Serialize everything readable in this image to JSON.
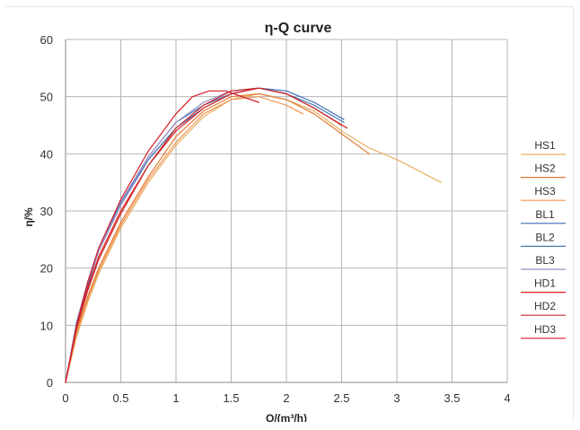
{
  "chart_data": {
    "type": "line",
    "title": "η-Q  curve",
    "xlabel": "Q/(m³/h)",
    "ylabel": "η/%",
    "xlim": [
      0,
      4
    ],
    "ylim": [
      0,
      60
    ],
    "xticks": [
      "0",
      "0.5",
      "1",
      "1.5",
      "2",
      "2.5",
      "3",
      "3.5",
      "4"
    ],
    "yticks": [
      "0",
      "10",
      "20",
      "30",
      "40",
      "50",
      "60"
    ],
    "grid": true,
    "legend_position": "right",
    "series": [
      {
        "name": "HS1",
        "color": "#e8b060",
        "x": [
          0,
          0.1,
          0.2,
          0.3,
          0.5,
          0.75,
          1.0,
          1.25,
          1.5,
          1.75,
          2.0,
          2.25,
          2.5,
          2.75,
          3.0,
          3.4
        ],
        "y": [
          0,
          8,
          14,
          19,
          27,
          35,
          41.5,
          46.5,
          49.5,
          50.5,
          49.5,
          47.5,
          44,
          41,
          39,
          35
        ]
      },
      {
        "name": "HS2",
        "color": "#e07a30",
        "x": [
          0,
          0.1,
          0.2,
          0.3,
          0.5,
          0.75,
          1.0,
          1.25,
          1.5,
          1.75,
          2.0,
          2.25,
          2.5,
          2.75
        ],
        "y": [
          0,
          9,
          15,
          20,
          28,
          36,
          43,
          47.5,
          50,
          50.5,
          49.5,
          47,
          43.5,
          40
        ]
      },
      {
        "name": "HS3",
        "color": "#f29555",
        "x": [
          0,
          0.1,
          0.2,
          0.3,
          0.5,
          0.75,
          1.0,
          1.25,
          1.5,
          1.75,
          2.0,
          2.15
        ],
        "y": [
          0,
          8.5,
          14.5,
          19.5,
          27.5,
          35.5,
          42,
          47,
          49.5,
          50,
          48.5,
          47
        ]
      },
      {
        "name": "BL1",
        "color": "#3e6cb3",
        "x": [
          0,
          0.1,
          0.2,
          0.3,
          0.5,
          0.75,
          1.0,
          1.25,
          1.5,
          1.75,
          2.0,
          2.25,
          2.52
        ],
        "y": [
          0,
          10,
          17,
          23,
          31,
          39,
          44.5,
          48,
          50.5,
          51.5,
          51,
          49,
          46
        ]
      },
      {
        "name": "BL2",
        "color": "#4878b8",
        "x": [
          0,
          0.1,
          0.2,
          0.3,
          0.5,
          0.75,
          1.0,
          1.25,
          1.5,
          1.75,
          2.0,
          2.25,
          2.52
        ],
        "y": [
          0,
          10.5,
          17.5,
          23.5,
          31.5,
          39.5,
          45.5,
          48.5,
          50.5,
          51.5,
          50.5,
          48.5,
          45.5
        ]
      },
      {
        "name": "BL3",
        "color": "#9a8ec2",
        "x": [
          0,
          0.1,
          0.2,
          0.3,
          0.5,
          0.75,
          1.0,
          1.25,
          1.5,
          1.75,
          2.0,
          2.25,
          2.5
        ],
        "y": [
          0,
          10,
          17.5,
          23,
          31,
          39.5,
          45.5,
          49,
          51,
          51.5,
          50.5,
          48,
          45
        ]
      },
      {
        "name": "HD1",
        "color": "#e02020",
        "x": [
          0,
          0.1,
          0.2,
          0.3,
          0.5,
          0.75,
          1.0,
          1.25,
          1.5,
          1.75,
          2.0,
          2.25,
          2.55
        ],
        "y": [
          0,
          9.5,
          16.5,
          22,
          30,
          38,
          44,
          48,
          50.5,
          51.5,
          50.5,
          48,
          44.5
        ]
      },
      {
        "name": "HD2",
        "color": "#c82828",
        "x": [
          0,
          0.1,
          0.2,
          0.3,
          0.5,
          0.75,
          1.0,
          1.25,
          1.5,
          1.75,
          2.0,
          2.25,
          2.5
        ],
        "y": [
          0,
          9.5,
          16,
          21.5,
          29.5,
          38,
          44.5,
          48.5,
          51,
          51.5,
          50.5,
          48,
          45
        ]
      },
      {
        "name": "HD3",
        "color": "#d81c2a",
        "x": [
          0,
          0.1,
          0.2,
          0.3,
          0.5,
          0.75,
          1.0,
          1.15,
          1.3,
          1.45,
          1.6,
          1.75
        ],
        "y": [
          0,
          10,
          17.5,
          23.5,
          32,
          40.5,
          47,
          50,
          51,
          51,
          50,
          49
        ]
      }
    ]
  }
}
